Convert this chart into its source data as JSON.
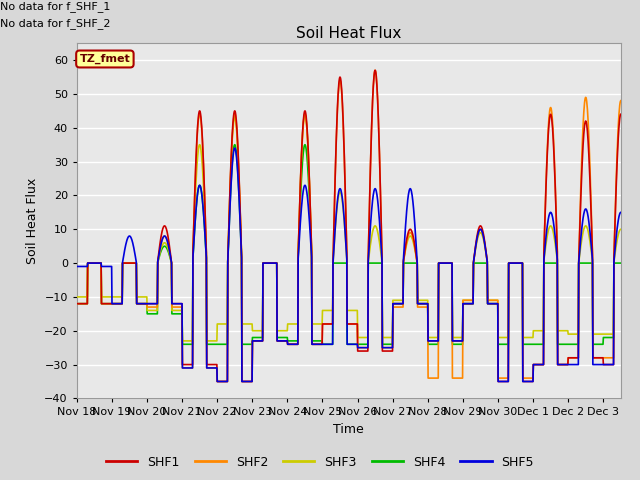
{
  "title": "Soil Heat Flux",
  "ylabel": "Soil Heat Flux",
  "xlabel": "Time",
  "ylim": [
    -40,
    65
  ],
  "yticks": [
    -40,
    -30,
    -20,
    -10,
    0,
    10,
    20,
    30,
    40,
    50,
    60
  ],
  "annotation_lines": [
    "No data for f_SHF_1",
    "No data for f_SHF_2"
  ],
  "legend_box_label": "TZ_fmet",
  "legend_box_color": "#ffff99",
  "legend_box_edge": "#aa0000",
  "colors": {
    "SHF1": "#cc0000",
    "SHF2": "#ff8800",
    "SHF3": "#cccc00",
    "SHF4": "#00bb00",
    "SHF5": "#0000dd"
  },
  "background_color": "#e8e8e8",
  "grid_color": "#ffffff",
  "tick_label_fontsize": 8,
  "axis_label_fontsize": 9,
  "title_fontsize": 11,
  "figsize": [
    6.4,
    4.8
  ],
  "dpi": 100,
  "xlim": [
    0,
    15.5
  ],
  "tick_positions": [
    0,
    1,
    2,
    3,
    4,
    5,
    6,
    7,
    8,
    9,
    10,
    11,
    12,
    13,
    14,
    15
  ],
  "tick_labels": [
    "Nov 18",
    "Nov 19",
    "Nov 20",
    "Nov 21",
    "Nov 22",
    "Nov 23",
    "Nov 24",
    "Nov 25",
    "Nov 26",
    "Nov 27",
    "Nov 28",
    "Nov 29",
    "Nov 30",
    "Dec 1",
    "Dec 2",
    "Dec 3"
  ]
}
